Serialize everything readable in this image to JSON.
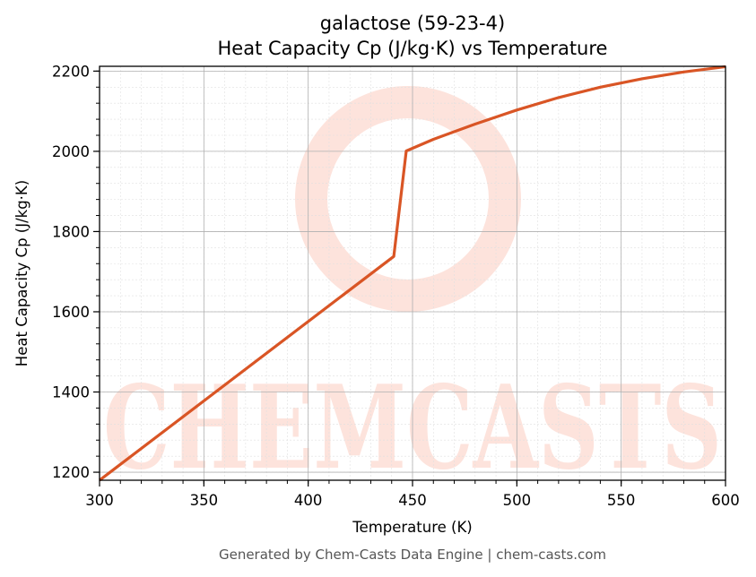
{
  "chart_data": {
    "type": "line",
    "title": "galactose (59-23-4)",
    "subtitle": "Heat Capacity Cp (J/kg·K) vs Temperature",
    "xlabel": "Temperature (K)",
    "ylabel": "Heat Capacity Cp (J/kg·K)",
    "xlim": [
      300,
      600
    ],
    "ylim": [
      1180,
      2212
    ],
    "x_ticks": [
      300,
      350,
      400,
      450,
      500,
      550,
      600
    ],
    "y_ticks": [
      1200,
      1400,
      1600,
      1800,
      2000,
      2200
    ],
    "grid": true,
    "line_color": "#d95525",
    "series": [
      {
        "x": [
          300,
          441,
          447,
          460,
          480,
          500,
          520,
          540,
          560,
          580,
          600
        ],
        "values": [
          1180,
          1738,
          2001,
          2030,
          2068,
          2103,
          2134,
          2160,
          2181,
          2198,
          2211
        ]
      }
    ]
  },
  "watermark": {
    "text": "CHEMCASTS",
    "color": "#fde3dc"
  },
  "footer": {
    "text": "Generated by Chem-Casts Data Engine | chem-casts.com"
  }
}
